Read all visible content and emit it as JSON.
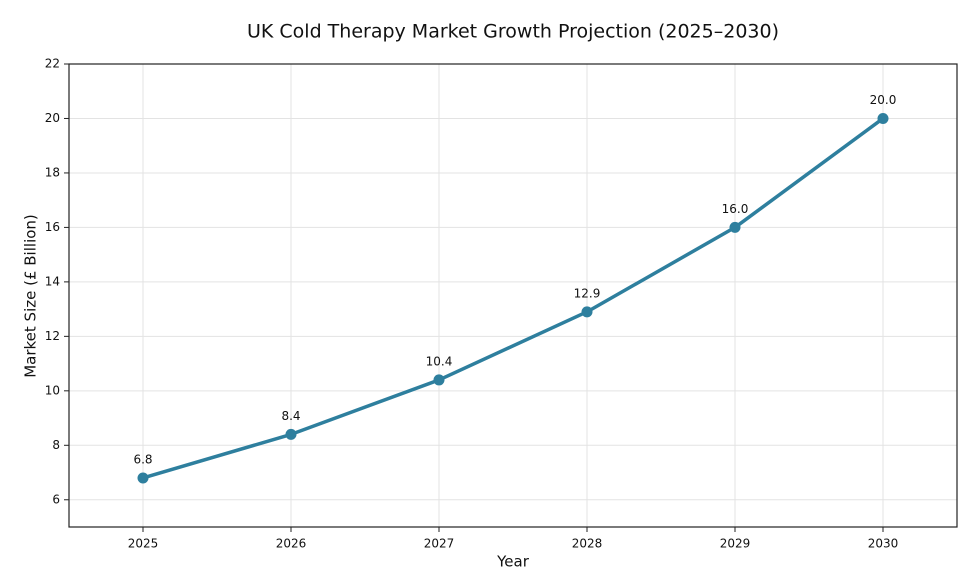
{
  "chart_data": {
    "type": "line",
    "title": "UK Cold Therapy Market Growth Projection (2025–2030)",
    "x_label": "Year",
    "y_label": "Market Size (£ Billion)",
    "x": [
      2025,
      2026,
      2027,
      2028,
      2029,
      2030
    ],
    "values": [
      6.8,
      8.4,
      10.4,
      12.9,
      16.0,
      20.0
    ],
    "value_labels": [
      "6.8",
      "8.4",
      "10.4",
      "12.9",
      "16.0",
      "20.0"
    ],
    "color": "#2e7f9e",
    "xlim": [
      2024.5,
      2030.5
    ],
    "xticks": [
      2025,
      2026,
      2027,
      2028,
      2029,
      2030
    ],
    "ylim": [
      5,
      22
    ],
    "yticks": [
      6,
      8,
      10,
      12,
      14,
      16,
      18,
      20,
      22
    ],
    "grid": true
  }
}
